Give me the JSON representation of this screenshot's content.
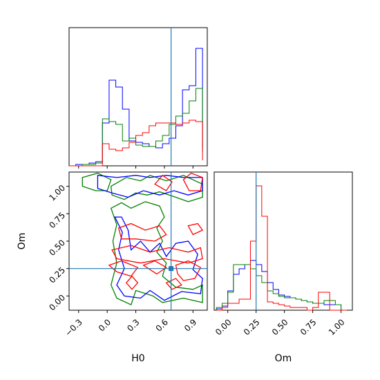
{
  "colors": {
    "blue": "#0000ff",
    "green": "#008000",
    "red": "#ff0000",
    "truth": "#1f77b4"
  },
  "chart_data": [
    {
      "type": "histogram",
      "panel": "H0 marginal",
      "x": [
        -0.4,
        -0.33,
        -0.26,
        -0.19,
        -0.12,
        -0.05,
        0.02,
        0.09,
        0.16,
        0.23,
        0.3,
        0.37,
        0.44,
        0.51,
        0.58,
        0.65,
        0.72,
        0.79,
        0.86,
        0.93,
        1.0
      ],
      "xlim": [
        -0.4,
        1.05
      ],
      "truth_x": 0.67,
      "series": [
        {
          "color": "blue",
          "values": [
            0,
            0.01,
            0.01,
            0.02,
            0.03,
            0.31,
            0.62,
            0.57,
            0.41,
            0.18,
            0.17,
            0.16,
            0.14,
            0.13,
            0.16,
            0.2,
            0.29,
            0.55,
            0.58,
            0.85,
            0.13
          ]
        },
        {
          "color": "green",
          "values": [
            0,
            0,
            0.01,
            0.01,
            0.02,
            0.34,
            0.32,
            0.3,
            0.18,
            0.2,
            0.15,
            0.14,
            0.14,
            0.18,
            0.22,
            0.3,
            0.36,
            0.38,
            0.47,
            0.56,
            0.1
          ]
        },
        {
          "color": "red",
          "values": [
            0,
            0,
            0,
            0,
            0,
            0.16,
            0.12,
            0.11,
            0.13,
            0.17,
            0.22,
            0.24,
            0.29,
            0.31,
            0.31,
            0.31,
            0.3,
            0.31,
            0.33,
            0.32,
            0.04
          ]
        }
      ]
    },
    {
      "type": "contour",
      "panel": "H0 vs Om",
      "xlabel": "H0",
      "ylabel": "Om",
      "xlim": [
        -0.4,
        1.05
      ],
      "ylim": [
        -0.13,
        1.13
      ],
      "xticks": [
        -0.3,
        0.0,
        0.3,
        0.6,
        0.9
      ],
      "xtick_labels": [
        "−0.3",
        "0.0",
        "0.3",
        "0.6",
        "0.9"
      ],
      "yticks": [
        0.0,
        0.25,
        0.5,
        0.75,
        1.0
      ],
      "ytick_labels": [
        "0.00",
        "0.25",
        "0.50",
        "0.75",
        "1.00"
      ],
      "truth": [
        0.67,
        0.25
      ],
      "contours": [
        {
          "color": "green",
          "points": [
            [
              -0.26,
              1.08
            ],
            [
              -0.1,
              1.12
            ],
            [
              0.04,
              1.06
            ],
            [
              0.0,
              0.96
            ],
            [
              -0.12,
              0.96
            ],
            [
              -0.26,
              1.0
            ]
          ]
        },
        {
          "color": "green",
          "points": [
            [
              0.04,
              1.0
            ],
            [
              0.2,
              1.08
            ],
            [
              0.35,
              1.05
            ],
            [
              0.45,
              1.1
            ],
            [
              0.62,
              1.05
            ],
            [
              0.8,
              1.1
            ],
            [
              1.0,
              1.02
            ],
            [
              1.0,
              0.9
            ],
            [
              0.85,
              0.86
            ],
            [
              0.72,
              0.9
            ],
            [
              0.55,
              0.95
            ],
            [
              0.42,
              0.92
            ],
            [
              0.3,
              0.94
            ],
            [
              0.18,
              0.88
            ],
            [
              0.05,
              0.92
            ]
          ]
        },
        {
          "color": "green",
          "points": [
            [
              0.04,
              0.8
            ],
            [
              0.1,
              0.65
            ],
            [
              0.06,
              0.5
            ],
            [
              0.1,
              0.3
            ],
            [
              0.04,
              0.1
            ],
            [
              0.1,
              -0.02
            ],
            [
              0.25,
              -0.08
            ],
            [
              0.3,
              0.05
            ],
            [
              0.48,
              0.0
            ],
            [
              0.58,
              -0.06
            ],
            [
              0.8,
              -0.02
            ],
            [
              1.0,
              -0.06
            ],
            [
              1.0,
              0.1
            ],
            [
              0.9,
              0.06
            ],
            [
              0.72,
              0.08
            ],
            [
              0.58,
              0.18
            ],
            [
              0.62,
              0.3
            ],
            [
              0.52,
              0.4
            ],
            [
              0.58,
              0.5
            ],
            [
              0.52,
              0.62
            ],
            [
              0.6,
              0.72
            ],
            [
              0.55,
              0.82
            ],
            [
              0.4,
              0.86
            ],
            [
              0.25,
              0.8
            ],
            [
              0.15,
              0.85
            ]
          ]
        },
        {
          "color": "blue",
          "points": [
            [
              -0.1,
              1.1
            ],
            [
              0.1,
              1.08
            ],
            [
              0.3,
              1.1
            ],
            [
              0.45,
              1.08
            ],
            [
              0.62,
              1.1
            ],
            [
              0.8,
              1.08
            ],
            [
              1.0,
              1.08
            ],
            [
              1.0,
              0.96
            ],
            [
              0.85,
              0.92
            ],
            [
              0.7,
              0.96
            ],
            [
              0.55,
              0.92
            ],
            [
              0.38,
              0.96
            ],
            [
              0.22,
              0.9
            ],
            [
              0.05,
              0.94
            ],
            [
              -0.1,
              0.98
            ]
          ]
        },
        {
          "color": "blue",
          "points": [
            [
              0.08,
              0.72
            ],
            [
              0.16,
              0.58
            ],
            [
              0.12,
              0.42
            ],
            [
              0.18,
              0.25
            ],
            [
              0.1,
              0.1
            ],
            [
              0.18,
              0.0
            ],
            [
              0.35,
              -0.02
            ],
            [
              0.45,
              0.05
            ],
            [
              0.6,
              -0.04
            ],
            [
              0.78,
              0.04
            ],
            [
              0.98,
              0.02
            ],
            [
              1.0,
              0.16
            ],
            [
              0.9,
              0.24
            ],
            [
              0.95,
              0.38
            ],
            [
              0.85,
              0.5
            ],
            [
              0.72,
              0.48
            ],
            [
              0.62,
              0.36
            ],
            [
              0.55,
              0.48
            ],
            [
              0.45,
              0.4
            ],
            [
              0.35,
              0.5
            ],
            [
              0.25,
              0.42
            ],
            [
              0.22,
              0.6
            ],
            [
              0.15,
              0.72
            ]
          ]
        },
        {
          "color": "red",
          "points": [
            [
              0.8,
              1.06
            ],
            [
              0.88,
              1.12
            ],
            [
              1.0,
              1.08
            ],
            [
              0.98,
              0.96
            ],
            [
              0.86,
              0.96
            ]
          ]
        },
        {
          "color": "red",
          "points": [
            [
              0.5,
              1.02
            ],
            [
              0.58,
              1.1
            ],
            [
              0.68,
              1.04
            ],
            [
              0.62,
              0.96
            ]
          ]
        },
        {
          "color": "red",
          "points": [
            [
              0.12,
              0.62
            ],
            [
              0.25,
              0.66
            ],
            [
              0.4,
              0.6
            ],
            [
              0.55,
              0.64
            ],
            [
              0.62,
              0.56
            ],
            [
              0.5,
              0.5
            ],
            [
              0.3,
              0.52
            ],
            [
              0.15,
              0.52
            ]
          ]
        },
        {
          "color": "red",
          "points": [
            [
              0.85,
              0.64
            ],
            [
              0.95,
              0.66
            ],
            [
              1.0,
              0.6
            ],
            [
              0.9,
              0.56
            ]
          ]
        },
        {
          "color": "red",
          "points": [
            [
              0.05,
              0.42
            ],
            [
              0.25,
              0.46
            ],
            [
              0.45,
              0.4
            ],
            [
              0.65,
              0.44
            ],
            [
              0.85,
              0.4
            ],
            [
              0.98,
              0.44
            ],
            [
              1.0,
              0.34
            ],
            [
              0.85,
              0.3
            ],
            [
              0.6,
              0.34
            ],
            [
              0.35,
              0.3
            ],
            [
              0.1,
              0.34
            ]
          ]
        },
        {
          "color": "red",
          "points": [
            [
              0.02,
              0.28
            ],
            [
              0.15,
              0.32
            ],
            [
              0.32,
              0.26
            ],
            [
              0.25,
              0.18
            ],
            [
              0.1,
              0.22
            ]
          ]
        },
        {
          "color": "red",
          "points": [
            [
              0.38,
              0.28
            ],
            [
              0.5,
              0.32
            ],
            [
              0.62,
              0.26
            ],
            [
              0.52,
              0.2
            ]
          ]
        },
        {
          "color": "red",
          "points": [
            [
              0.72,
              0.28
            ],
            [
              0.85,
              0.32
            ],
            [
              0.98,
              0.26
            ],
            [
              0.92,
              0.16
            ],
            [
              0.8,
              0.14
            ],
            [
              0.74,
              0.2
            ]
          ]
        },
        {
          "color": "red",
          "points": [
            [
              0.2,
              0.12
            ],
            [
              0.26,
              0.18
            ],
            [
              0.32,
              0.12
            ],
            [
              0.26,
              0.06
            ]
          ]
        },
        {
          "color": "red",
          "points": [
            [
              0.62,
              0.12
            ],
            [
              0.72,
              0.16
            ],
            [
              0.78,
              0.1
            ],
            [
              0.68,
              0.06
            ]
          ]
        }
      ]
    },
    {
      "type": "histogram",
      "panel": "Om marginal",
      "xlabel": "Om",
      "x": [
        -0.1,
        -0.05,
        0.0,
        0.05,
        0.1,
        0.15,
        0.2,
        0.25,
        0.3,
        0.35,
        0.4,
        0.45,
        0.5,
        0.55,
        0.6,
        0.65,
        0.7,
        0.75,
        0.8,
        0.85,
        0.9,
        0.95,
        1.0,
        1.05
      ],
      "xlim": [
        -0.12,
        1.1
      ],
      "xticks": [
        0.0,
        0.25,
        0.5,
        0.75,
        1.0
      ],
      "xtick_labels": [
        "0.00",
        "0.25",
        "0.50",
        "0.75",
        "1.00"
      ],
      "truth_x": 0.25,
      "series": [
        {
          "color": "blue",
          "values": [
            0.01,
            0.03,
            0.14,
            0.26,
            0.3,
            0.33,
            0.36,
            0.33,
            0.28,
            0.2,
            0.15,
            0.11,
            0.1,
            0.09,
            0.08,
            0.07,
            0.06,
            0.05,
            0.05,
            0.04,
            0.04,
            0.04,
            0.0
          ]
        },
        {
          "color": "green",
          "values": [
            0.02,
            0.05,
            0.13,
            0.33,
            0.33,
            0.33,
            0.3,
            0.25,
            0.2,
            0.14,
            0.12,
            0.1,
            0.09,
            0.09,
            0.08,
            0.07,
            0.06,
            0.05,
            0.05,
            0.07,
            0.07,
            0.04,
            0.0
          ]
        },
        {
          "color": "red",
          "values": [
            0.0,
            0.02,
            0.05,
            0.05,
            0.08,
            0.08,
            0.5,
            0.9,
            0.68,
            0.06,
            0.05,
            0.04,
            0.03,
            0.02,
            0.02,
            0.02,
            0.0,
            0.02,
            0.13,
            0.13,
            0.0,
            0.0,
            0.0
          ]
        }
      ]
    }
  ]
}
